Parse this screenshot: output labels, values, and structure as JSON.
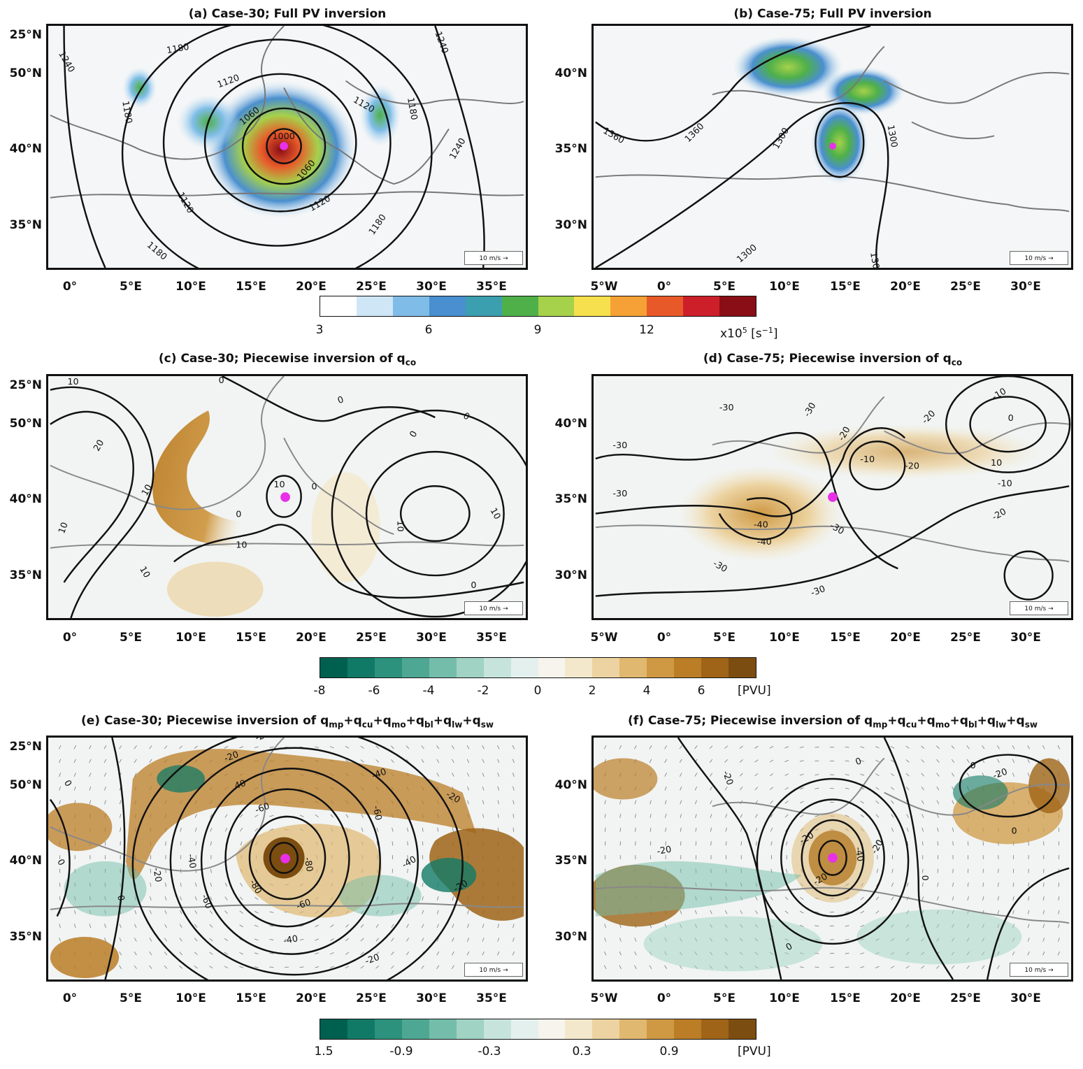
{
  "panels": [
    {
      "id": "a",
      "title": "(a) Case-30; Full PV inversion",
      "ref": "10 m/s",
      "lat_labels": [
        "25°N",
        "50°N",
        "40°N",
        "35°N"
      ],
      "lon_labels": [
        "0°",
        "5°E",
        "10°E",
        "15°E",
        "20°E",
        "25°E",
        "30°E",
        "35°E"
      ],
      "contour_labels": [
        "1240",
        "1240",
        "1240",
        "1180",
        "1180",
        "1180",
        "1180",
        "1180",
        "1120",
        "1120",
        "1120",
        "1120",
        "1060",
        "1060",
        "1000"
      ]
    },
    {
      "id": "b",
      "title": "(b) Case-75; Full PV inversion",
      "ref": "10 m/s",
      "lat_labels": [
        "40°N",
        "35°N",
        "30°N"
      ],
      "lon_labels": [
        "5°W",
        "0°",
        "5°E",
        "10°E",
        "15°E",
        "20°E",
        "25°E",
        "30°E"
      ],
      "contour_labels": [
        "1360",
        "1360",
        "1300",
        "1300",
        "1300",
        "1300"
      ]
    },
    {
      "id": "c",
      "title": "(c) Case-30; Piecewise inversion of q",
      "title_sub": "co",
      "ref": "10 m/s",
      "lat_labels": [
        "25°N",
        "50°N",
        "40°N",
        "35°N"
      ],
      "lon_labels": [
        "0°",
        "5°E",
        "10°E",
        "15°E",
        "20°E",
        "25°E",
        "30°E",
        "35°E"
      ],
      "contour_labels": [
        "10",
        "0",
        "20",
        "10",
        "10",
        "10",
        "10",
        "0",
        "0",
        "0",
        "0",
        "0",
        "10",
        "10",
        "10",
        "0"
      ]
    },
    {
      "id": "d",
      "title": "(d) Case-75; Piecewise inversion of q",
      "title_sub": "co",
      "ref": "10 m/s",
      "lat_labels": [
        "40°N",
        "35°N",
        "30°N"
      ],
      "lon_labels": [
        "5°W",
        "0°",
        "5°E",
        "10°E",
        "15°E",
        "20°E",
        "25°E",
        "30°E"
      ],
      "contour_labels": [
        "-30",
        "-30",
        "-30",
        "-30",
        "-20",
        "-20",
        "-10",
        "0",
        "-10",
        "10",
        "-20",
        "-10",
        "-20",
        "-40",
        "-40",
        "-30",
        "-30",
        "-30"
      ]
    },
    {
      "id": "e",
      "title": "(e) Case-30; Piecewise inversion of q",
      "title_terms": [
        "mp",
        "cu",
        "mo",
        "bl",
        "lw",
        "sw"
      ],
      "ref": "10 m/s",
      "lat_labels": [
        "25°N",
        "50°N",
        "40°N",
        "35°N"
      ],
      "lon_labels": [
        "0°",
        "5°E",
        "10°E",
        "15°E",
        "20°E",
        "25°E",
        "30°E",
        "35°E"
      ],
      "contour_labels": [
        "0",
        "-20",
        "40",
        "-60",
        "-60",
        "-80",
        "-80",
        "-60",
        "-60",
        "-40",
        "-40",
        "-20",
        "-20",
        "-40",
        "-20",
        "-40",
        "-20",
        "-20",
        "0",
        "0"
      ]
    },
    {
      "id": "f",
      "title": "(f) Case-75; Piecewise inversion of q",
      "title_terms": [
        "mp",
        "cu",
        "mo",
        "bl",
        "lw",
        "sw"
      ],
      "ref": "10 m/s",
      "lat_labels": [
        "40°N",
        "35°N",
        "30°N"
      ],
      "lon_labels": [
        "5°W",
        "0°",
        "5°E",
        "10°E",
        "15°E",
        "20°E",
        "25°E",
        "30°E"
      ],
      "contour_labels": [
        "0",
        "-20",
        "0",
        "-20",
        "-20",
        "-20",
        "-40",
        "-20",
        "0",
        "0",
        "-20",
        "0"
      ]
    }
  ],
  "colorbars": [
    {
      "id": "cb1",
      "ticks": [
        "3",
        "6",
        "9",
        "12"
      ],
      "unit": "x10",
      "unit_exp": "5",
      "unit_tail": " [s",
      "unit_exp2": "−1",
      "unit_end": "]",
      "colors": [
        "#ffffff",
        "#cfe6f6",
        "#7fbde8",
        "#4a8fcf",
        "#3c9fb0",
        "#4fb04a",
        "#a6d14a",
        "#f6e04e",
        "#f6a135",
        "#e8592a",
        "#cd1f2a",
        "#8a0e16"
      ]
    },
    {
      "id": "cb2",
      "ticks": [
        "-8",
        "-6",
        "-4",
        "-2",
        "0",
        "2",
        "4",
        "6"
      ],
      "unit": "[PVU]",
      "colors": [
        "#00604f",
        "#117a66",
        "#2c927d",
        "#4ea793",
        "#74bdaa",
        "#a0d3c4",
        "#c6e4db",
        "#e4f0ed",
        "#f6f4ec",
        "#f4e8cc",
        "#ecd3a1",
        "#e0b86f",
        "#cf9944",
        "#bb7d26",
        "#9f6417",
        "#7c4d10"
      ]
    },
    {
      "id": "cb3",
      "ticks": [
        "1.5",
        "-0.9",
        "-0.3",
        "0.3",
        "0.9"
      ],
      "unit": "[PVU]",
      "colors": [
        "#00604f",
        "#117a66",
        "#2c927d",
        "#4ea793",
        "#74bdaa",
        "#a0d3c4",
        "#c6e4db",
        "#e4f0ed",
        "#f6f4ec",
        "#f4e8cc",
        "#ecd3a1",
        "#e0b86f",
        "#cf9944",
        "#bb7d26",
        "#9f6417",
        "#7c4d10"
      ]
    }
  ]
}
